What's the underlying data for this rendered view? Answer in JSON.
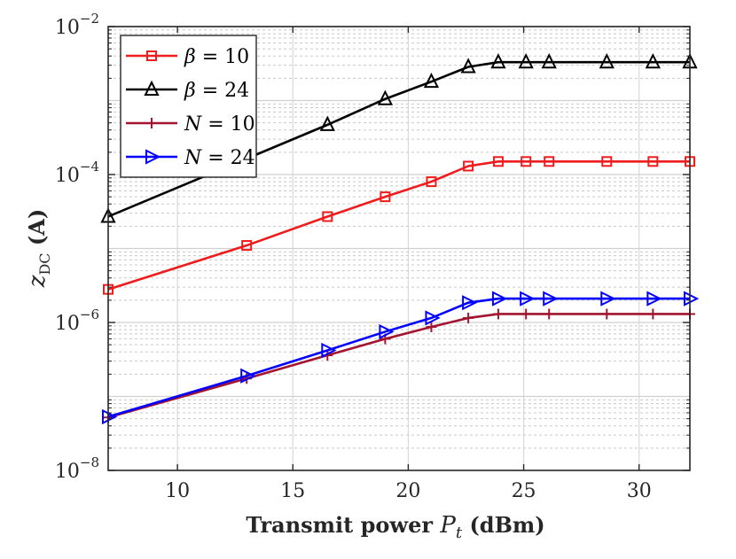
{
  "chart_data": {
    "type": "line",
    "title": "",
    "xlabel": "Transmit power",
    "xlabel_symbol": "P",
    "xlabel_subscript": "t",
    "xlabel_unit": "(dBm)",
    "ylabel_symbol": "z",
    "ylabel_subscript": "DC",
    "ylabel_unit": "(A)",
    "xlim": [
      7,
      32.2
    ],
    "ylim_log10": [
      -8,
      -2
    ],
    "yscale": "log",
    "grid": true,
    "legend_position": "top-left",
    "x_ticks": [
      10,
      15,
      20,
      25,
      30
    ],
    "y_ticks": [
      {
        "base": "10",
        "exp": "-8",
        "log": -8
      },
      {
        "base": "10",
        "exp": "-6",
        "log": -6
      },
      {
        "base": "10",
        "exp": "-4",
        "log": -4
      },
      {
        "base": "10",
        "exp": "-2",
        "log": -2
      }
    ],
    "series": [
      {
        "name": "β = 10",
        "legend_symbol": "β",
        "legend_value": "10",
        "color": "#ee1c1c",
        "marker": "square",
        "x": [
          7,
          13,
          16.5,
          19,
          21,
          22.6,
          23.9,
          25.1,
          26.1,
          28.6,
          30.6,
          32.2
        ],
        "y": [
          2.8e-06,
          1.1e-05,
          2.7e-05,
          5e-05,
          8e-05,
          0.00013,
          0.00015,
          0.00015,
          0.00015,
          0.00015,
          0.00015,
          0.00015
        ]
      },
      {
        "name": "β = 24",
        "legend_symbol": "β",
        "legend_value": "24",
        "color": "#000000",
        "marker": "triangle-up",
        "x": [
          7,
          16.5,
          19,
          21,
          22.6,
          23.9,
          25.1,
          26.1,
          28.6,
          30.6,
          32.2
        ],
        "y": [
          2.7e-05,
          0.00047,
          0.00105,
          0.0018,
          0.00285,
          0.0033,
          0.0033,
          0.0033,
          0.0033,
          0.0033,
          0.0033
        ]
      },
      {
        "name": "N = 10",
        "legend_symbol": "N",
        "legend_value": "10",
        "color": "#a2142f",
        "marker": "plus",
        "x": [
          7,
          13,
          16.5,
          19,
          21,
          22.6,
          23.9,
          25.1,
          26.1,
          28.6,
          30.6,
          32.2
        ],
        "y": [
          5.2e-08,
          1.75e-07,
          3.6e-07,
          6e-07,
          8.7e-07,
          1.15e-06,
          1.3e-06,
          1.3e-06,
          1.3e-06,
          1.3e-06,
          1.3e-06,
          1.3e-06
        ]
      },
      {
        "name": "N = 24",
        "legend_symbol": "N",
        "legend_value": "24",
        "color": "#0000ff",
        "marker": "triangle-right",
        "x": [
          7,
          13,
          16.5,
          19,
          21,
          22.6,
          23.9,
          25.1,
          26.1,
          28.6,
          30.6,
          32.2
        ],
        "y": [
          5.3e-08,
          1.9e-07,
          4.2e-07,
          7.5e-07,
          1.15e-06,
          1.85e-06,
          2.1e-06,
          2.1e-06,
          2.1e-06,
          2.1e-06,
          2.1e-06,
          2.1e-06
        ]
      }
    ]
  }
}
